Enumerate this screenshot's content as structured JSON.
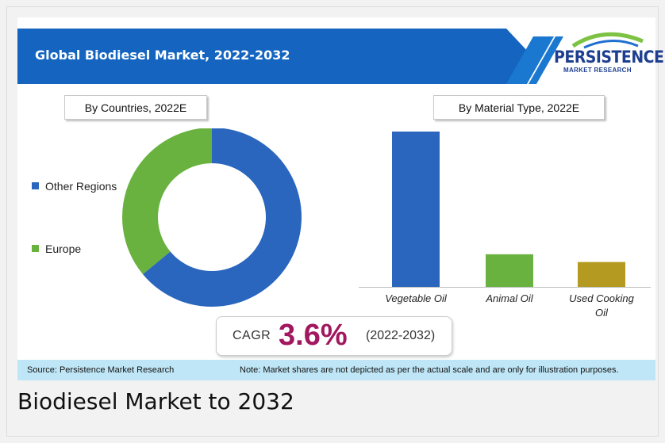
{
  "header": {
    "title": "Global Biodiesel Market, 2022-2032",
    "logo_main": "PERSISTENCE",
    "logo_sub": "MARKET RESEARCH"
  },
  "colors": {
    "banner": "#1565c0",
    "blue": "#2a66be",
    "green": "#69b23f",
    "olive": "#b49a21",
    "cagr": "#a1185e",
    "footer": "#bfe6f6"
  },
  "countries_panel": {
    "label": "By Countries, 2022E"
  },
  "material_panel": {
    "label": "By Material Type, 2022E"
  },
  "cagr": {
    "label": "CAGR",
    "value": "3.6%",
    "period": "(2022-2032)"
  },
  "footer": {
    "source": "Source: Persistence Market Research",
    "note": "Note: Market shares are not depicted as per the actual scale and are only for illustration purposes."
  },
  "caption": "Biodiesel Market to 2032",
  "chart_data": [
    {
      "type": "pie",
      "categories": [
        "Other Regions",
        "Europe"
      ],
      "values": [
        64,
        36
      ],
      "colors": [
        "#2a66be",
        "#69b23f"
      ],
      "legend": "left"
    },
    {
      "type": "bar",
      "categories": [
        "Vegetable Oil",
        "Animal Oil",
        "Used Cooking Oil"
      ],
      "values": [
        100,
        21,
        16
      ],
      "colors": [
        "#2a66be",
        "#69b23f",
        "#b49a21"
      ],
      "ylim": [
        0,
        100
      ]
    }
  ]
}
